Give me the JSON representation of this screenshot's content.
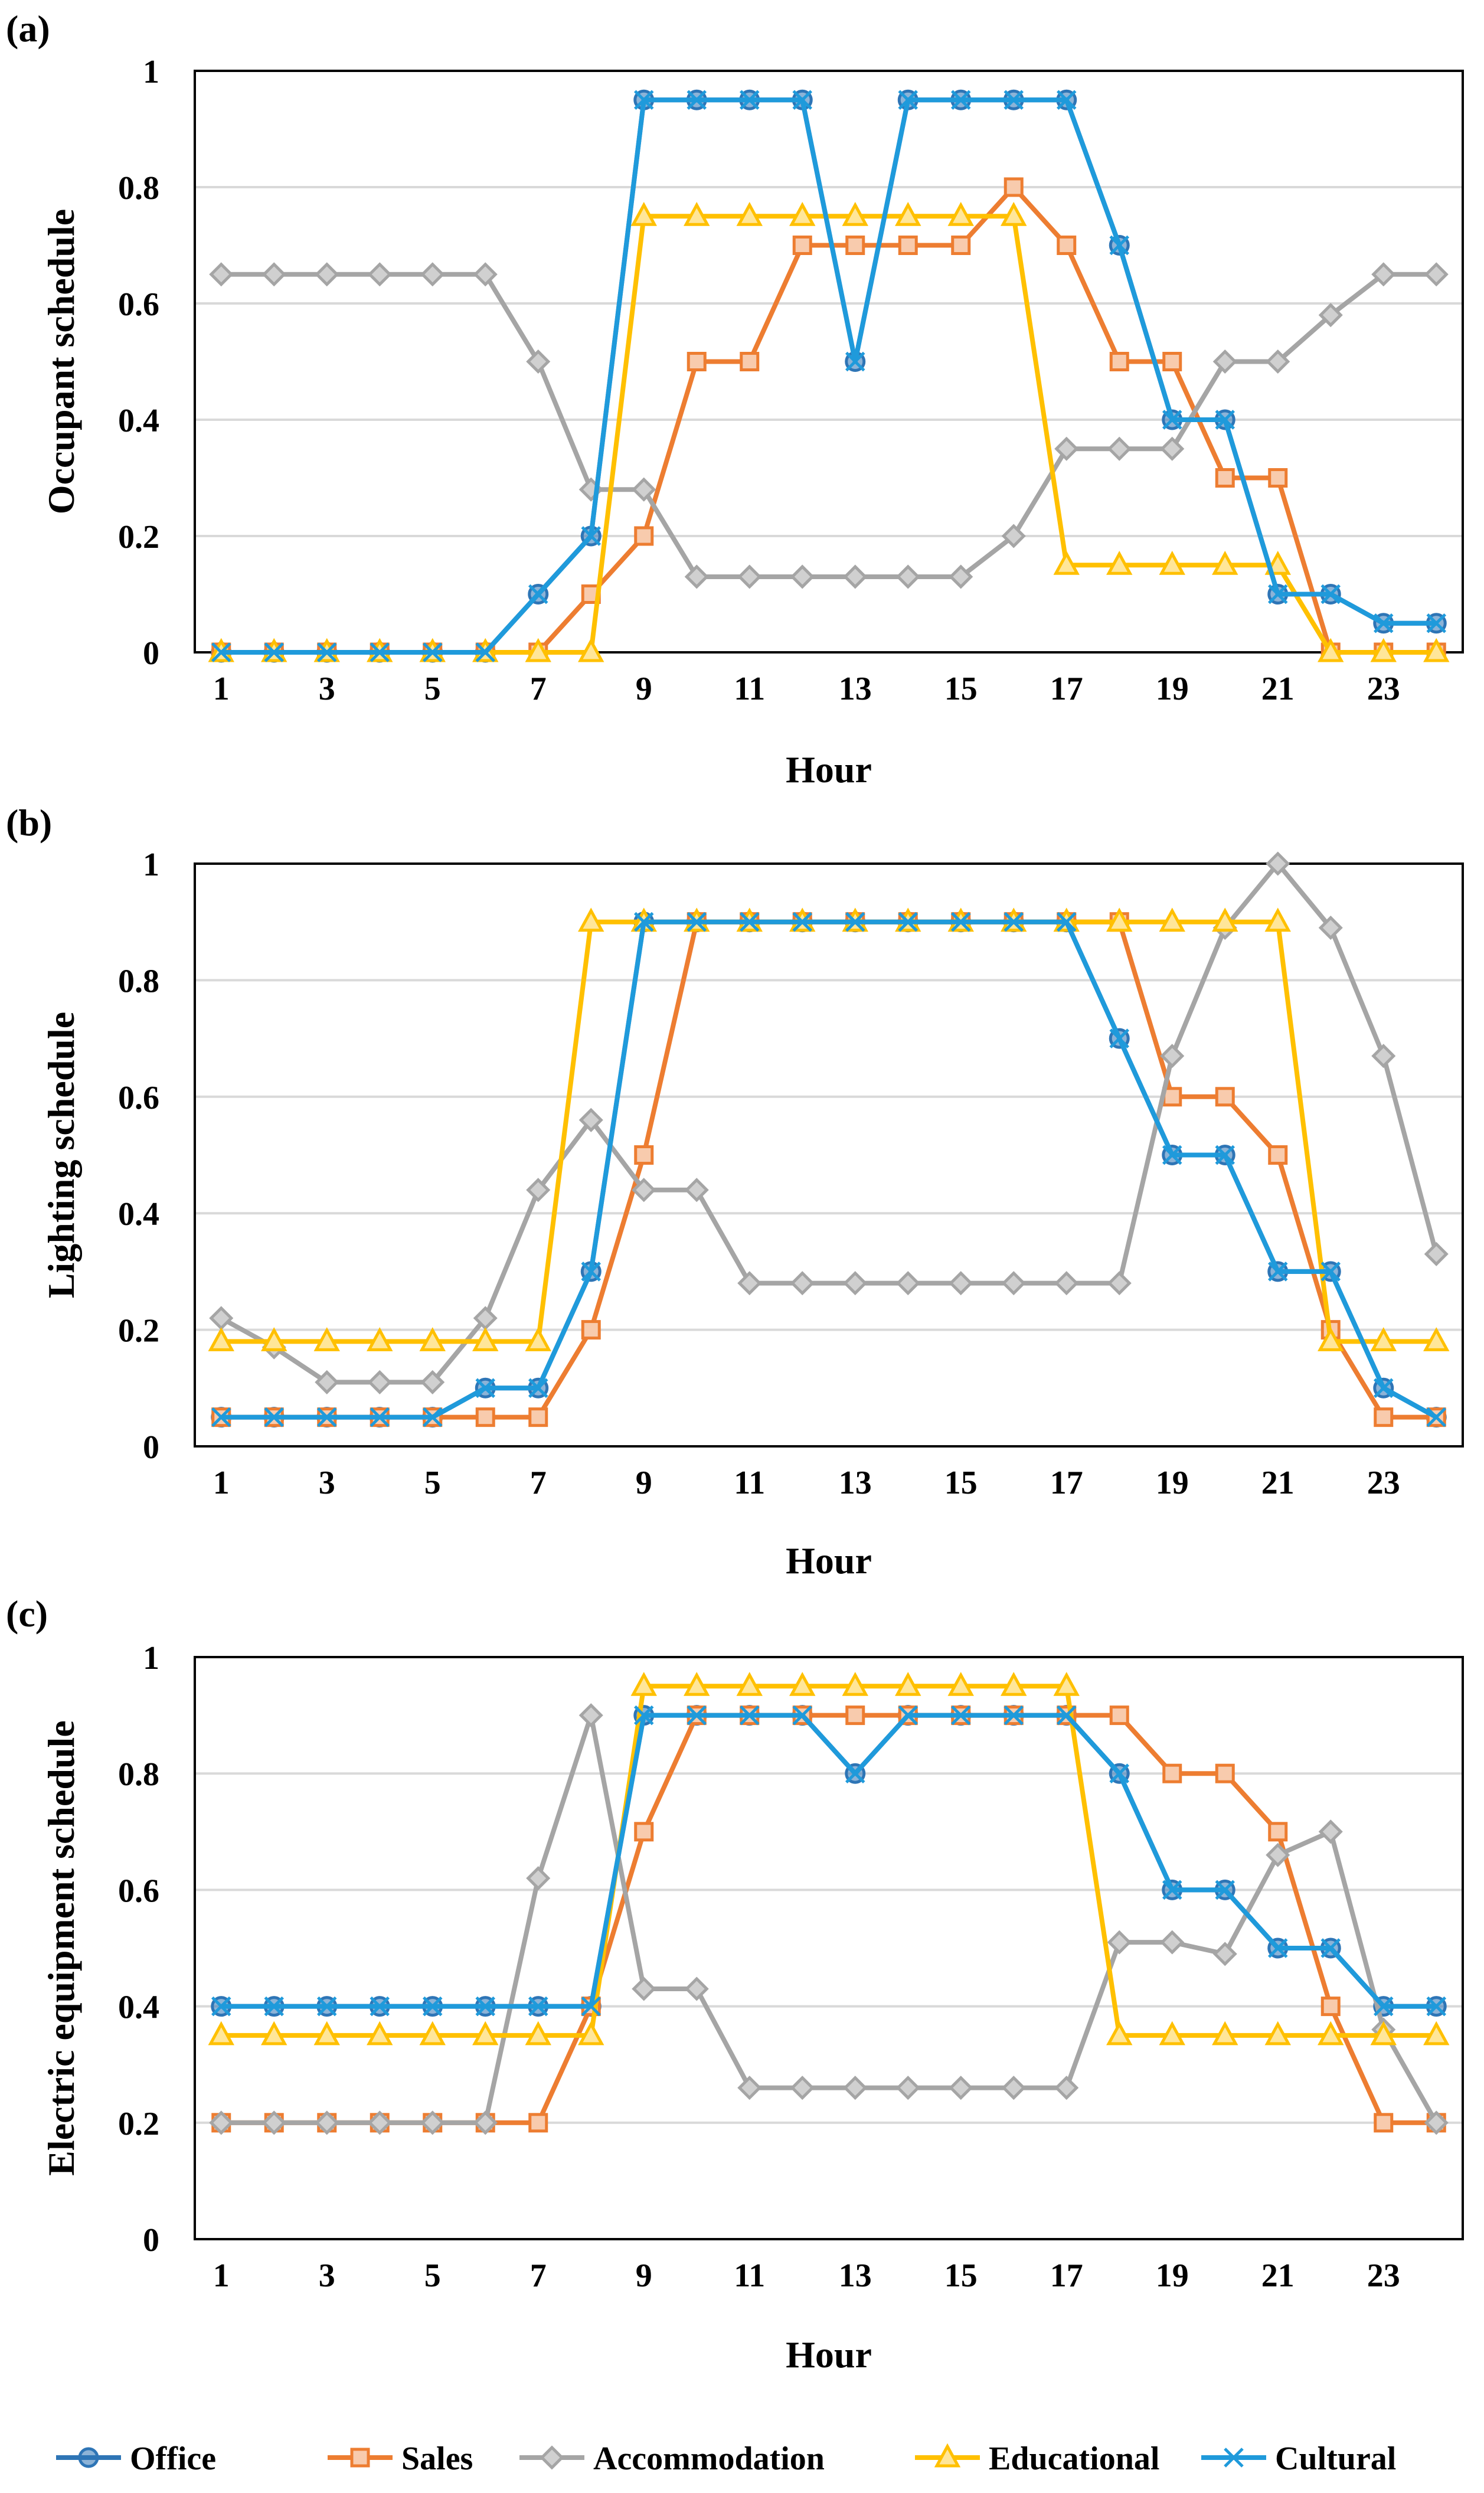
{
  "legend": [
    "Office",
    "Sales",
    "Accommodation",
    "Educational",
    "Cultural"
  ],
  "series_styles": [
    {
      "name": "Office",
      "color": "#2E75B6",
      "marker": "circle"
    },
    {
      "name": "Sales",
      "color": "#ED7D31",
      "marker": "square"
    },
    {
      "name": "Accommodation",
      "color": "#A5A5A5",
      "marker": "diamond"
    },
    {
      "name": "Educational",
      "color": "#FFC000",
      "marker": "triangle"
    },
    {
      "name": "Cultural",
      "color": "#1F9ADB",
      "marker": "x"
    }
  ],
  "gridline_color": "#D9D9D9",
  "chart_data": [
    {
      "type": "line",
      "panel_label": "(a)",
      "xlabel": "Hour",
      "ylabel": "Occupant schedule",
      "x": [
        1,
        2,
        3,
        4,
        5,
        6,
        7,
        8,
        9,
        10,
        11,
        12,
        13,
        14,
        15,
        16,
        17,
        18,
        19,
        20,
        21,
        22,
        23,
        24
      ],
      "x_tick_labels": [
        "1",
        "3",
        "5",
        "7",
        "9",
        "11",
        "13",
        "15",
        "17",
        "19",
        "21",
        "23"
      ],
      "ylim": [
        0,
        1
      ],
      "y_tick_labels": [
        "0",
        "0.2",
        "0.4",
        "0.6",
        "0.8",
        "1"
      ],
      "grid": true,
      "series": [
        {
          "name": "Office",
          "values": [
            0,
            0,
            0,
            0,
            0,
            0,
            0.1,
            0.2,
            0.95,
            0.95,
            0.95,
            0.95,
            0.5,
            0.95,
            0.95,
            0.95,
            0.95,
            0.7,
            0.4,
            0.4,
            0.1,
            0.1,
            0.05,
            0.05
          ]
        },
        {
          "name": "Sales",
          "values": [
            0,
            0,
            0,
            0,
            0,
            0,
            0,
            0.1,
            0.2,
            0.5,
            0.5,
            0.7,
            0.7,
            0.7,
            0.7,
            0.8,
            0.7,
            0.5,
            0.5,
            0.3,
            0.3,
            0,
            0,
            0
          ]
        },
        {
          "name": "Accommodation",
          "values": [
            0.65,
            0.65,
            0.65,
            0.65,
            0.65,
            0.65,
            0.5,
            0.28,
            0.28,
            0.13,
            0.13,
            0.13,
            0.13,
            0.13,
            0.13,
            0.2,
            0.35,
            0.35,
            0.35,
            0.5,
            0.5,
            0.58,
            0.65,
            0.65
          ]
        },
        {
          "name": "Educational",
          "values": [
            0,
            0,
            0,
            0,
            0,
            0,
            0,
            0,
            0.75,
            0.75,
            0.75,
            0.75,
            0.75,
            0.75,
            0.75,
            0.75,
            0.15,
            0.15,
            0.15,
            0.15,
            0.15,
            0,
            0,
            0
          ]
        },
        {
          "name": "Cultural",
          "values": [
            0,
            0,
            0,
            0,
            0,
            0,
            0.1,
            0.2,
            0.95,
            0.95,
            0.95,
            0.95,
            0.5,
            0.95,
            0.95,
            0.95,
            0.95,
            0.7,
            0.4,
            0.4,
            0.1,
            0.1,
            0.05,
            0.05
          ]
        }
      ]
    },
    {
      "type": "line",
      "panel_label": "(b)",
      "xlabel": "Hour",
      "ylabel": "Lighting schedule",
      "x": [
        1,
        2,
        3,
        4,
        5,
        6,
        7,
        8,
        9,
        10,
        11,
        12,
        13,
        14,
        15,
        16,
        17,
        18,
        19,
        20,
        21,
        22,
        23,
        24
      ],
      "x_tick_labels": [
        "1",
        "3",
        "5",
        "7",
        "9",
        "11",
        "13",
        "15",
        "17",
        "19",
        "21",
        "23"
      ],
      "ylim": [
        0,
        1
      ],
      "y_tick_labels": [
        "0",
        "0.2",
        "0.4",
        "0.6",
        "0.8",
        "1"
      ],
      "grid": true,
      "series": [
        {
          "name": "Office",
          "values": [
            0.05,
            0.05,
            0.05,
            0.05,
            0.05,
            0.1,
            0.1,
            0.3,
            0.9,
            0.9,
            0.9,
            0.9,
            0.9,
            0.9,
            0.9,
            0.9,
            0.9,
            0.7,
            0.5,
            0.5,
            0.3,
            0.3,
            0.1,
            0.05
          ]
        },
        {
          "name": "Sales",
          "values": [
            0.05,
            0.05,
            0.05,
            0.05,
            0.05,
            0.05,
            0.05,
            0.2,
            0.5,
            0.9,
            0.9,
            0.9,
            0.9,
            0.9,
            0.9,
            0.9,
            0.9,
            0.9,
            0.6,
            0.6,
            0.5,
            0.2,
            0.05,
            0.05
          ]
        },
        {
          "name": "Accommodation",
          "values": [
            0.22,
            0.17,
            0.11,
            0.11,
            0.11,
            0.22,
            0.44,
            0.56,
            0.44,
            0.44,
            0.28,
            0.28,
            0.28,
            0.28,
            0.28,
            0.28,
            0.28,
            0.28,
            0.67,
            0.89,
            1.0,
            0.89,
            0.67,
            0.33
          ]
        },
        {
          "name": "Educational",
          "values": [
            0.18,
            0.18,
            0.18,
            0.18,
            0.18,
            0.18,
            0.18,
            0.9,
            0.9,
            0.9,
            0.9,
            0.9,
            0.9,
            0.9,
            0.9,
            0.9,
            0.9,
            0.9,
            0.9,
            0.9,
            0.9,
            0.18,
            0.18,
            0.18
          ]
        },
        {
          "name": "Cultural",
          "values": [
            0.05,
            0.05,
            0.05,
            0.05,
            0.05,
            0.1,
            0.1,
            0.3,
            0.9,
            0.9,
            0.9,
            0.9,
            0.9,
            0.9,
            0.9,
            0.9,
            0.9,
            0.7,
            0.5,
            0.5,
            0.3,
            0.3,
            0.1,
            0.05
          ]
        }
      ]
    },
    {
      "type": "line",
      "panel_label": "(c)",
      "xlabel": "Hour",
      "ylabel": "Electric equipment schedule",
      "x": [
        1,
        2,
        3,
        4,
        5,
        6,
        7,
        8,
        9,
        10,
        11,
        12,
        13,
        14,
        15,
        16,
        17,
        18,
        19,
        20,
        21,
        22,
        23,
        24
      ],
      "x_tick_labels": [
        "1",
        "3",
        "5",
        "7",
        "9",
        "11",
        "13",
        "15",
        "17",
        "19",
        "21",
        "23"
      ],
      "ylim": [
        0,
        1
      ],
      "y_tick_labels": [
        "0",
        "0.2",
        "0.4",
        "0.6",
        "0.8",
        "1"
      ],
      "grid": true,
      "series": [
        {
          "name": "Office",
          "values": [
            0.4,
            0.4,
            0.4,
            0.4,
            0.4,
            0.4,
            0.4,
            0.4,
            0.9,
            0.9,
            0.9,
            0.9,
            0.8,
            0.9,
            0.9,
            0.9,
            0.9,
            0.8,
            0.6,
            0.6,
            0.5,
            0.5,
            0.4,
            0.4
          ]
        },
        {
          "name": "Sales",
          "values": [
            0.2,
            0.2,
            0.2,
            0.2,
            0.2,
            0.2,
            0.2,
            0.4,
            0.7,
            0.9,
            0.9,
            0.9,
            0.9,
            0.9,
            0.9,
            0.9,
            0.9,
            0.9,
            0.8,
            0.8,
            0.7,
            0.4,
            0.2,
            0.2
          ]
        },
        {
          "name": "Accommodation",
          "values": [
            0.2,
            0.2,
            0.2,
            0.2,
            0.2,
            0.2,
            0.62,
            0.9,
            0.43,
            0.43,
            0.26,
            0.26,
            0.26,
            0.26,
            0.26,
            0.26,
            0.26,
            0.51,
            0.51,
            0.49,
            0.66,
            0.7,
            0.36,
            0.2
          ]
        },
        {
          "name": "Educational",
          "values": [
            0.35,
            0.35,
            0.35,
            0.35,
            0.35,
            0.35,
            0.35,
            0.35,
            0.95,
            0.95,
            0.95,
            0.95,
            0.95,
            0.95,
            0.95,
            0.95,
            0.95,
            0.35,
            0.35,
            0.35,
            0.35,
            0.35,
            0.35,
            0.35
          ]
        },
        {
          "name": "Cultural",
          "values": [
            0.4,
            0.4,
            0.4,
            0.4,
            0.4,
            0.4,
            0.4,
            0.4,
            0.9,
            0.9,
            0.9,
            0.9,
            0.8,
            0.9,
            0.9,
            0.9,
            0.9,
            0.8,
            0.6,
            0.6,
            0.5,
            0.5,
            0.4,
            0.4
          ]
        }
      ]
    }
  ]
}
